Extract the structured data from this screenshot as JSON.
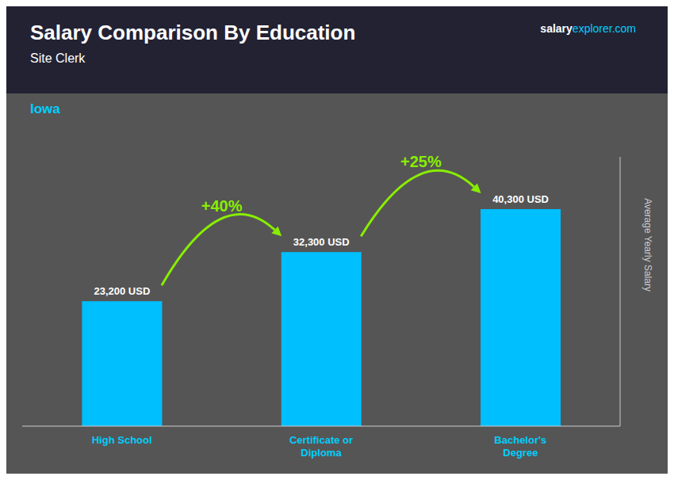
{
  "chart_data": {
    "type": "bar",
    "title": "Salary Comparison By Education",
    "subtitle": "Site Clerk",
    "location": "Iowa",
    "brand": [
      "salary",
      "explorer.com"
    ],
    "categories": [
      "High School",
      "Certificate or\nDiploma",
      "Bachelor's\nDegree"
    ],
    "values": [
      23200,
      32300,
      40300
    ],
    "value_labels": [
      "23,200 USD",
      "32,300 USD",
      "40,300 USD"
    ],
    "data_labels": true,
    "color": "#00BFFF",
    "ylabel": "Average Yearly Salary",
    "ylim": [
      0,
      50000
    ],
    "tick_labels": "x",
    "grid": false,
    "annotations": [
      "+40%",
      "+25%"
    ]
  }
}
